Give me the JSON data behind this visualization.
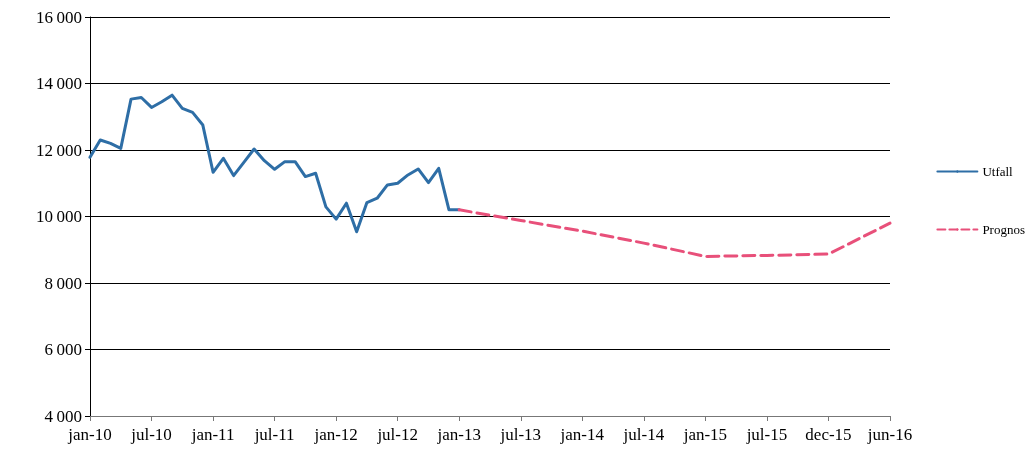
{
  "chart_data": {
    "type": "line",
    "categories": [
      "jan-10",
      null,
      null,
      null,
      null,
      null,
      "jul-10",
      null,
      null,
      null,
      null,
      null,
      "jan-11",
      null,
      null,
      null,
      null,
      null,
      "jul-11",
      null,
      null,
      null,
      null,
      null,
      "jan-12",
      null,
      null,
      null,
      null,
      null,
      "jul-12",
      null,
      null,
      null,
      null,
      null,
      "jan-13",
      null,
      null,
      null,
      null,
      null,
      "jul-13",
      null,
      null,
      null,
      null,
      null,
      "jan-14",
      null,
      null,
      null,
      null,
      null,
      "jul-14",
      null,
      null,
      null,
      null,
      null,
      "jan-15",
      null,
      null,
      null,
      null,
      null,
      "jul-15",
      null,
      null,
      null,
      null,
      null,
      "dec-15",
      null,
      null,
      null,
      null,
      null,
      "jun-16"
    ],
    "series": [
      {
        "name": "Utfall",
        "color": "#2e6ea6",
        "line_style": "solid",
        "values": [
          11780,
          12300,
          12200,
          12050,
          13530,
          13580,
          13280,
          13450,
          13650,
          13250,
          13130,
          12750,
          11330,
          11750,
          11230,
          11630,
          12030,
          11680,
          11420,
          11650,
          11650,
          11200,
          11300,
          10290,
          9920,
          10400,
          9540,
          10420,
          10550,
          10950,
          11000,
          11250,
          11430,
          11020,
          11450,
          10200,
          10200,
          null,
          null,
          null,
          null,
          null,
          null,
          null,
          null,
          null,
          null,
          null,
          null,
          null,
          null,
          null,
          null,
          null,
          null,
          null,
          null,
          null,
          null,
          null,
          null,
          null,
          null,
          null,
          null,
          null,
          null,
          null,
          null,
          null,
          null,
          null,
          null,
          null,
          null,
          null,
          null,
          null,
          null
        ]
      },
      {
        "name": "Prognos",
        "color": "#e8507a",
        "line_style": "dashed",
        "values": [
          null,
          null,
          null,
          null,
          null,
          null,
          null,
          null,
          null,
          null,
          null,
          null,
          null,
          null,
          null,
          null,
          null,
          null,
          null,
          null,
          null,
          null,
          null,
          null,
          null,
          null,
          null,
          null,
          null,
          null,
          null,
          null,
          null,
          null,
          null,
          null,
          10200,
          null,
          null,
          null,
          null,
          null,
          9880,
          null,
          null,
          null,
          null,
          null,
          9560,
          null,
          null,
          null,
          null,
          null,
          9200,
          null,
          null,
          null,
          null,
          null,
          8800,
          null,
          null,
          null,
          null,
          null,
          8830,
          null,
          null,
          null,
          null,
          null,
          8870,
          null,
          null,
          null,
          null,
          null,
          9800
        ]
      }
    ],
    "ylim": [
      4000,
      16000
    ],
    "yticks": [
      4000,
      6000,
      8000,
      10000,
      12000,
      14000,
      16000
    ],
    "grid": "y",
    "legend": "right",
    "marker": "none"
  }
}
